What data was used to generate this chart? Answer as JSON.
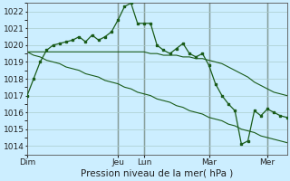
{
  "bg_color": "#cceeff",
  "grid_color": "#aacccc",
  "line_color": "#1a5c1a",
  "ylim": [
    1013.5,
    1022.5
  ],
  "yticks": [
    1014,
    1015,
    1016,
    1017,
    1018,
    1019,
    1020,
    1021,
    1022
  ],
  "xlabel": "Pression niveau de la mer( hPa )",
  "day_labels": [
    "Dim",
    "Jeu",
    "Lun",
    "Mar",
    "Mer"
  ],
  "day_positions": [
    0,
    14,
    18,
    28,
    37
  ],
  "vline_positions": [
    14,
    18,
    28,
    37
  ],
  "xlim": [
    0,
    40
  ],
  "series1_x": [
    0,
    1,
    2,
    3,
    4,
    5,
    6,
    7,
    8,
    9,
    10,
    11,
    12,
    13,
    14,
    15,
    16,
    17,
    18,
    19,
    20,
    21,
    22,
    23,
    24,
    25,
    26,
    27,
    28,
    29,
    30,
    31,
    32,
    33,
    34,
    35,
    36,
    37,
    38,
    39,
    40
  ],
  "series1": [
    1017.0,
    1018.0,
    1019.0,
    1019.7,
    1020.0,
    1020.1,
    1020.2,
    1020.3,
    1020.5,
    1020.2,
    1020.6,
    1020.3,
    1020.5,
    1020.8,
    1021.5,
    1022.3,
    1022.5,
    1021.3,
    1021.3,
    1021.3,
    1020.0,
    1019.7,
    1019.5,
    1019.8,
    1020.1,
    1019.5,
    1019.3,
    1019.5,
    1018.8,
    1017.7,
    1017.0,
    1016.5,
    1016.1,
    1014.1,
    1014.3,
    1016.1,
    1015.8,
    1016.2,
    1016.0,
    1015.8,
    1015.7
  ],
  "series2": [
    1019.6,
    1019.6,
    1019.6,
    1019.6,
    1019.6,
    1019.6,
    1019.6,
    1019.6,
    1019.6,
    1019.6,
    1019.6,
    1019.6,
    1019.6,
    1019.6,
    1019.6,
    1019.6,
    1019.6,
    1019.6,
    1019.6,
    1019.5,
    1019.5,
    1019.4,
    1019.4,
    1019.4,
    1019.3,
    1019.3,
    1019.2,
    1019.2,
    1019.1,
    1019.0,
    1018.9,
    1018.7,
    1018.5,
    1018.3,
    1018.1,
    1017.8,
    1017.6,
    1017.4,
    1017.2,
    1017.1,
    1017.0
  ],
  "series3": [
    1019.6,
    1019.4,
    1019.3,
    1019.1,
    1019.0,
    1018.9,
    1018.7,
    1018.6,
    1018.5,
    1018.3,
    1018.2,
    1018.1,
    1017.9,
    1017.8,
    1017.7,
    1017.5,
    1017.4,
    1017.2,
    1017.1,
    1017.0,
    1016.8,
    1016.7,
    1016.6,
    1016.4,
    1016.3,
    1016.1,
    1016.0,
    1015.9,
    1015.7,
    1015.6,
    1015.5,
    1015.3,
    1015.2,
    1015.0,
    1014.9,
    1014.8,
    1014.6,
    1014.5,
    1014.4,
    1014.3,
    1014.2
  ]
}
